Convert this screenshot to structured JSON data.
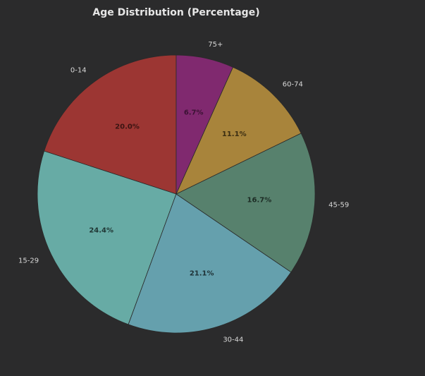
{
  "chart_data": {
    "type": "pie",
    "title": "Age Distribution (Percentage)",
    "categories": [
      "0-14",
      "15-29",
      "30-44",
      "45-59",
      "60-74",
      "75+"
    ],
    "values": [
      20.0,
      24.4,
      21.1,
      16.7,
      11.1,
      6.7
    ],
    "value_labels": [
      "20.0%",
      "24.4%",
      "21.1%",
      "16.7%",
      "11.1%",
      "6.7%"
    ],
    "colors": [
      "#9c3633",
      "#67aba5",
      "#65a0ad",
      "#57816d",
      "#a8843b",
      "#80296f"
    ],
    "value_label_colors": [
      "#3a1412",
      "#1f3533",
      "#1f3236",
      "#1c2b24",
      "#3a2d12",
      "#3a1233"
    ],
    "start_angle_deg": 90,
    "direction": "counterclockwise",
    "legend": "none"
  }
}
